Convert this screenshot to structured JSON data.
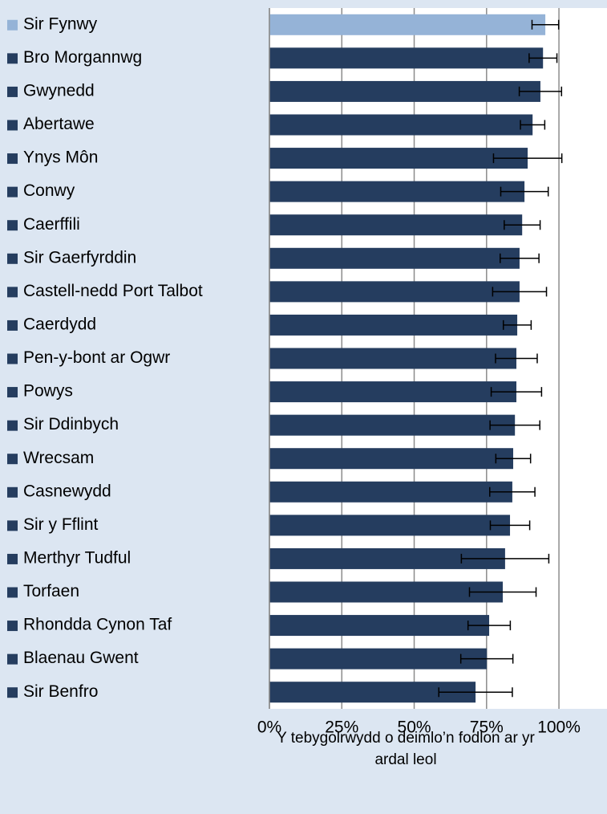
{
  "chart_data": {
    "type": "hbar_error",
    "categories": [
      "Sir Fynwy",
      "Bro Morgannwg",
      "Gwynedd",
      "Abertawe",
      "Ynys Môn",
      "Conwy",
      "Caerffili",
      "Sir Gaerfyrddin",
      "Castell-nedd Port Talbot",
      "Caerdydd",
      "Pen-y-bont ar Ogwr",
      "Powys",
      "Sir Ddinbych",
      "Wrecsam",
      "Casnewydd",
      "Sir y Fflint",
      "Merthyr Tudful",
      "Torfaen",
      "Rhondda Cynon Taf",
      "Blaenau Gwent",
      "Sir Benfro"
    ],
    "values": [
      95.3,
      94.5,
      93.6,
      90.9,
      89.2,
      88.1,
      87.3,
      86.4,
      86.4,
      85.6,
      85.3,
      85.3,
      84.8,
      84.2,
      83.9,
      83.1,
      81.4,
      80.6,
      75.9,
      75.1,
      71.2
    ],
    "errors": [
      4.6,
      4.8,
      7.3,
      4.2,
      11.8,
      8.2,
      6.2,
      6.7,
      9.3,
      4.8,
      7.2,
      8.7,
      8.6,
      6.0,
      7.8,
      6.8,
      15.1,
      11.5,
      7.3,
      9.0,
      12.7
    ],
    "colors": [
      "#95b3d7",
      "#253d5f",
      "#253d5f",
      "#253d5f",
      "#253d5f",
      "#253d5f",
      "#253d5f",
      "#253d5f",
      "#253d5f",
      "#253d5f",
      "#253d5f",
      "#253d5f",
      "#253d5f",
      "#253d5f",
      "#253d5f",
      "#253d5f",
      "#253d5f",
      "#253d5f",
      "#253d5f",
      "#253d5f",
      "#253d5f"
    ],
    "xlabel": "Y tebygolrwydd o deimlo’n fodlon ar yr ardal leol",
    "xlim": [
      0,
      116.6
    ],
    "xticks": [
      {
        "value": 0,
        "label": "0%"
      },
      {
        "value": 25,
        "label": "25%"
      },
      {
        "value": 50,
        "label": "50%"
      },
      {
        "value": 75,
        "label": "75%"
      },
      {
        "value": 100,
        "label": "100%"
      }
    ],
    "grid": true
  }
}
